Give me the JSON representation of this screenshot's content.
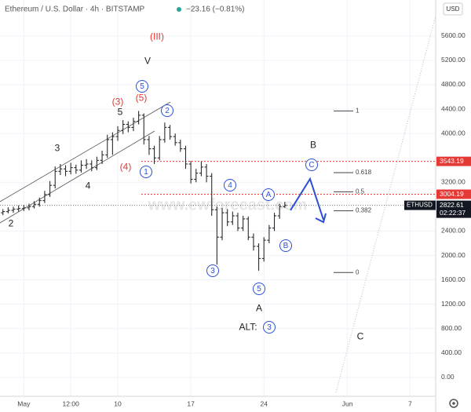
{
  "chart_data": {
    "type": "ohlc",
    "title": "Ethereum / U.S. Dollar · 4h · BITSTAMP",
    "change": "−23.16 (−0.81%)",
    "currency": "USD",
    "watermark": "www.ewforecast.com",
    "color": "#2b2b2b",
    "x": [
      -1,
      -0.5,
      0,
      0.5,
      1,
      1.5,
      2,
      2.5,
      3,
      3.5,
      4,
      4.5,
      5,
      5.5,
      6,
      6.5,
      7,
      7.5,
      8,
      8.5,
      9,
      9.5,
      10,
      10.5,
      11,
      11.5,
      12,
      12.5,
      13,
      13.5,
      14,
      14.5,
      15,
      15.5,
      16,
      16.5,
      17,
      17.5,
      18,
      18.5,
      19,
      19.5,
      20,
      20.5,
      21,
      21.5,
      22,
      22.5,
      23,
      23.5,
      24,
      24.5,
      25,
      25.5,
      26
    ],
    "open": [
      2700,
      2720,
      2740,
      2760,
      2770,
      2780,
      2800,
      2840,
      2900,
      3000,
      3150,
      3380,
      3420,
      3380,
      3440,
      3400,
      3480,
      3500,
      3440,
      3560,
      3650,
      3900,
      3950,
      4050,
      4150,
      4100,
      4200,
      4300,
      3900,
      3750,
      3600,
      3900,
      4100,
      3950,
      3850,
      3750,
      3500,
      3250,
      3350,
      3450,
      3300,
      2750,
      2300,
      2700,
      2550,
      2650,
      2450,
      2600,
      2300,
      2150,
      1950,
      2250,
      2450,
      2650,
      2800
    ],
    "high": [
      2760,
      2790,
      2800,
      2820,
      2830,
      2850,
      2890,
      2950,
      3060,
      3220,
      3460,
      3500,
      3480,
      3520,
      3490,
      3560,
      3580,
      3560,
      3620,
      3720,
      3980,
      4020,
      4120,
      4220,
      4200,
      4260,
      4370,
      4330,
      3960,
      3800,
      3960,
      4180,
      4140,
      4000,
      3900,
      3800,
      3550,
      3420,
      3540,
      3500,
      3350,
      2800,
      2780,
      2760,
      2720,
      2700,
      2650,
      2640,
      2360,
      2200,
      2300,
      2500,
      2700,
      2850,
      2880
    ],
    "low": [
      2660,
      2690,
      2700,
      2720,
      2730,
      2740,
      2770,
      2800,
      2860,
      2960,
      3100,
      3320,
      3300,
      3330,
      3340,
      3360,
      3420,
      3380,
      3400,
      3500,
      3600,
      3650,
      3880,
      3990,
      4020,
      4040,
      4150,
      3820,
      3650,
      3500,
      3560,
      3850,
      3900,
      3800,
      3700,
      3420,
      3180,
      3200,
      3300,
      3200,
      2650,
      1850,
      2250,
      2480,
      2500,
      2400,
      2400,
      2250,
      2080,
      1750,
      1900,
      2200,
      2400,
      2600,
      2780
    ],
    "close": [
      2720,
      2740,
      2760,
      2770,
      2780,
      2800,
      2840,
      2900,
      3000,
      3150,
      3380,
      3420,
      3380,
      3440,
      3400,
      3480,
      3500,
      3440,
      3560,
      3650,
      3900,
      3950,
      4050,
      4150,
      4100,
      4200,
      4300,
      3900,
      3750,
      3600,
      3900,
      4100,
      3950,
      3850,
      3750,
      3500,
      3250,
      3350,
      3450,
      3300,
      2750,
      2300,
      2700,
      2550,
      2650,
      2450,
      2600,
      2300,
      2150,
      1950,
      2250,
      2450,
      2650,
      2800,
      2822.61
    ],
    "xlim": [
      -1.28,
      40.45
    ],
    "ylim": [
      -310,
      6190
    ],
    "xticks": [
      {
        "value": 1,
        "label": "May"
      },
      {
        "value": 5.5,
        "label": "12:00"
      },
      10,
      17,
      24,
      {
        "value": 32,
        "label": "Jun"
      },
      {
        "value": 38,
        "label": "7"
      }
    ],
    "yticks": [
      {
        "value": 0,
        "label": "0.00"
      },
      {
        "value": 400,
        "label": "400.00"
      },
      {
        "value": 800,
        "label": "800.00"
      },
      {
        "value": 1200,
        "label": "1200.00"
      },
      {
        "value": 1600,
        "label": "1600.00"
      },
      {
        "value": 2000,
        "label": "2000.00"
      },
      {
        "value": 2400,
        "label": "2400.00"
      },
      {
        "value": 3200,
        "label": "3200.00"
      },
      {
        "value": 4000,
        "label": "4000.00"
      },
      {
        "value": 4400,
        "label": "4400.00"
      },
      {
        "value": 4800,
        "label": "4800.00"
      },
      {
        "value": 5200,
        "label": "5200.00"
      },
      {
        "value": 5600,
        "label": "5600.00"
      }
    ],
    "levels": [
      {
        "value": 3543.19,
        "color": "#e53935"
      },
      {
        "value": 3004.19,
        "color": "#e53935"
      }
    ],
    "last_price": {
      "symbol": "ETHUSD",
      "value": 2822.61,
      "countdown": "02:22:37"
    },
    "fib_levels": [
      {
        "label": "1",
        "price": 4370
      },
      {
        "label": "0.618",
        "price": 3358
      },
      {
        "label": "0.5",
        "price": 3045
      },
      {
        "label": "0.382",
        "price": 2733
      },
      {
        "label": "0",
        "price": 1720
      }
    ],
    "annotations": [
      {
        "text": "(III)",
        "color": "#e53935",
        "circled": false
      },
      {
        "text": "V",
        "color": "#222",
        "circled": false
      },
      {
        "text": "5",
        "color": "#2a4fd6",
        "circled": true
      },
      {
        "text": "(5)",
        "color": "#e53935",
        "circled": false
      },
      {
        "text": "(3)",
        "color": "#e53935",
        "circled": false
      },
      {
        "text": "5",
        "color": "#222",
        "circled": false
      },
      {
        "text": "3",
        "color": "#222",
        "circled": false
      },
      {
        "text": "4",
        "color": "#222",
        "circled": false
      },
      {
        "text": "2",
        "color": "#222",
        "circled": false
      },
      {
        "text": "(4)",
        "color": "#e53935",
        "circled": false
      },
      {
        "text": "1",
        "color": "#2a4fd6",
        "circled": true
      },
      {
        "text": "2",
        "color": "#2a4fd6",
        "circled": true
      },
      {
        "text": "4",
        "color": "#2a4fd6",
        "circled": true
      },
      {
        "text": "3",
        "color": "#2a4fd6",
        "circled": true
      },
      {
        "text": "5",
        "color": "#2a4fd6",
        "circled": true
      },
      {
        "text": "A",
        "color": "#222",
        "circled": false
      },
      {
        "text": "ALT:",
        "color": "#222",
        "circled": false
      },
      {
        "text": "3",
        "color": "#2a4fd6",
        "circled": true
      },
      {
        "text": "A",
        "color": "#2a4fd6",
        "circled": true
      },
      {
        "text": "B",
        "color": "#2a4fd6",
        "circled": true
      },
      {
        "text": "C",
        "color": "#2a4fd6",
        "circled": true
      },
      {
        "text": "B",
        "color": "#222",
        "circled": false
      },
      {
        "text": "C",
        "color": "#222",
        "circled": false
      }
    ]
  }
}
